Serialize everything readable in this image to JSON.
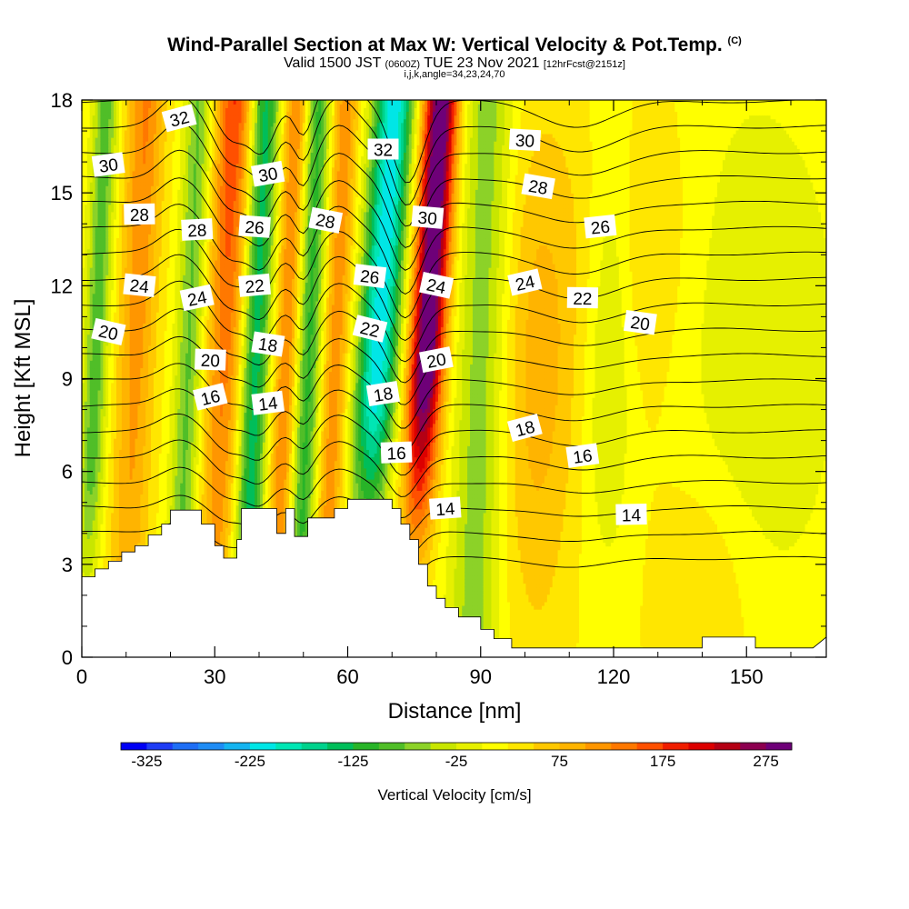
{
  "chart_data": {
    "type": "heatmap",
    "title": "Wind-Parallel Section at Max W: Vertical Velocity & Pot.Temp.",
    "title_unit": "(C)",
    "subtitle_main": "Valid 1500 JST",
    "subtitle_z": "(0600Z)",
    "subtitle_date": "TUE 23 Nov 2021",
    "subtitle_fcst": "[12hrFcst@2151z]",
    "subtitle2": "i,j,k,angle=34,23,24,70",
    "xlabel": "Distance [nm]",
    "ylabel": "Height [Kft MSL]",
    "xlim": [
      0,
      168
    ],
    "ylim": [
      0,
      18
    ],
    "x_ticks": [
      "0",
      "30",
      "60",
      "90",
      "120",
      "150"
    ],
    "y_ticks": [
      "0",
      "3",
      "6",
      "9",
      "12",
      "15",
      "18"
    ],
    "colorbar": {
      "label": "Vertical Velocity [cm/s]",
      "tick_labels": [
        "-325",
        "-225",
        "-125",
        "-25",
        "75",
        "175",
        "275"
      ],
      "range": [
        -350,
        300
      ],
      "colors": [
        "#0000f5",
        "#1e3cf5",
        "#1e6ef5",
        "#1e8cf5",
        "#14b4f0",
        "#00e6e6",
        "#00e6b4",
        "#00d28c",
        "#00be5a",
        "#28b428",
        "#50be28",
        "#8cd228",
        "#c8e600",
        "#e6f000",
        "#ffff00",
        "#ffe600",
        "#ffc800",
        "#ffb400",
        "#ff9600",
        "#ff7800",
        "#ff5000",
        "#f01e00",
        "#dc0000",
        "#b40014",
        "#8c0050",
        "#6e0078"
      ]
    },
    "theta_contour_labels": [
      {
        "value": "32",
        "x": 22,
        "y": 17.4
      },
      {
        "value": "30",
        "x": 6,
        "y": 15.9
      },
      {
        "value": "28",
        "x": 13,
        "y": 14.3
      },
      {
        "value": "24",
        "x": 13,
        "y": 12.0
      },
      {
        "value": "20",
        "x": 6,
        "y": 10.5
      },
      {
        "value": "30",
        "x": 42,
        "y": 15.6
      },
      {
        "value": "28",
        "x": 26,
        "y": 13.8
      },
      {
        "value": "26",
        "x": 39,
        "y": 13.9
      },
      {
        "value": "28",
        "x": 55,
        "y": 14.1
      },
      {
        "value": "24",
        "x": 26,
        "y": 11.6
      },
      {
        "value": "22",
        "x": 39,
        "y": 12.0
      },
      {
        "value": "20",
        "x": 29,
        "y": 9.6
      },
      {
        "value": "18",
        "x": 42,
        "y": 10.1
      },
      {
        "value": "16",
        "x": 29,
        "y": 8.4
      },
      {
        "value": "14",
        "x": 42,
        "y": 8.2
      },
      {
        "value": "32",
        "x": 68,
        "y": 16.4
      },
      {
        "value": "26",
        "x": 65,
        "y": 12.3
      },
      {
        "value": "22",
        "x": 65,
        "y": 10.6
      },
      {
        "value": "18",
        "x": 68,
        "y": 8.5
      },
      {
        "value": "16",
        "x": 71,
        "y": 6.6
      },
      {
        "value": "30",
        "x": 78,
        "y": 14.2
      },
      {
        "value": "24",
        "x": 80,
        "y": 12.0
      },
      {
        "value": "20",
        "x": 80,
        "y": 9.6
      },
      {
        "value": "14",
        "x": 82,
        "y": 4.8
      },
      {
        "value": "30",
        "x": 100,
        "y": 16.7
      },
      {
        "value": "28",
        "x": 103,
        "y": 15.2
      },
      {
        "value": "24",
        "x": 100,
        "y": 12.1
      },
      {
        "value": "26",
        "x": 117,
        "y": 13.9
      },
      {
        "value": "22",
        "x": 113,
        "y": 11.6
      },
      {
        "value": "20",
        "x": 126,
        "y": 10.8
      },
      {
        "value": "18",
        "x": 100,
        "y": 7.4
      },
      {
        "value": "16",
        "x": 113,
        "y": 6.5
      },
      {
        "value": "14",
        "x": 124,
        "y": 4.6
      }
    ],
    "terrain_profile": [
      [
        0,
        2.6
      ],
      [
        3,
        2.6
      ],
      [
        3,
        2.85
      ],
      [
        6,
        2.85
      ],
      [
        6,
        3.1
      ],
      [
        9,
        3.1
      ],
      [
        9,
        3.4
      ],
      [
        12,
        3.4
      ],
      [
        12,
        3.6
      ],
      [
        15,
        3.6
      ],
      [
        15,
        3.95
      ],
      [
        18,
        3.95
      ],
      [
        18,
        4.3
      ],
      [
        20,
        4.3
      ],
      [
        20,
        4.75
      ],
      [
        27,
        4.75
      ],
      [
        27,
        4.3
      ],
      [
        30,
        4.3
      ],
      [
        30,
        3.6
      ],
      [
        32,
        3.6
      ],
      [
        32,
        3.2
      ],
      [
        35,
        3.2
      ],
      [
        35,
        3.8
      ],
      [
        36,
        3.8
      ],
      [
        36,
        4.8
      ],
      [
        44,
        4.8
      ],
      [
        44,
        4.0
      ],
      [
        46,
        4.0
      ],
      [
        46,
        4.8
      ],
      [
        48,
        4.8
      ],
      [
        48,
        3.9
      ],
      [
        51,
        3.9
      ],
      [
        51,
        4.5
      ],
      [
        57,
        4.5
      ],
      [
        57,
        4.8
      ],
      [
        60,
        4.8
      ],
      [
        60,
        5.1
      ],
      [
        70,
        5.1
      ],
      [
        70,
        4.8
      ],
      [
        72,
        4.8
      ],
      [
        72,
        4.3
      ],
      [
        74,
        4.3
      ],
      [
        74,
        3.8
      ],
      [
        76,
        3.8
      ],
      [
        76,
        3.0
      ],
      [
        78,
        3.0
      ],
      [
        78,
        2.3
      ],
      [
        80,
        2.3
      ],
      [
        80,
        1.9
      ],
      [
        82,
        1.9
      ],
      [
        82,
        1.6
      ],
      [
        85,
        1.6
      ],
      [
        85,
        1.3
      ],
      [
        90,
        1.3
      ],
      [
        90,
        0.9
      ],
      [
        93,
        0.9
      ],
      [
        93,
        0.6
      ],
      [
        97,
        0.6
      ],
      [
        97,
        0.3
      ],
      [
        140,
        0.3
      ],
      [
        140,
        0.65
      ],
      [
        152,
        0.65
      ],
      [
        152,
        0.3
      ],
      [
        165,
        0.3
      ],
      [
        168,
        0.65
      ],
      [
        168,
        0
      ]
    ]
  }
}
